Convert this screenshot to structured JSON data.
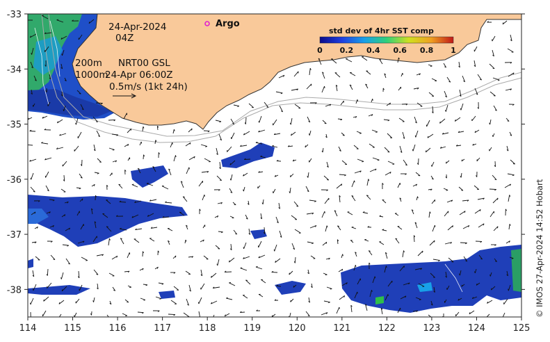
{
  "map": {
    "lon_range": [
      114,
      125
    ],
    "lat_range": [
      -38.5,
      -33
    ],
    "x_ticks": [
      "114",
      "115",
      "116",
      "117",
      "118",
      "119",
      "120",
      "121",
      "122",
      "123",
      "124",
      "125"
    ],
    "y_ticks": [
      "-33",
      "-34",
      "-35",
      "-36",
      "-37",
      "-38"
    ],
    "colors": {
      "land": "#f9c99a",
      "ocean": "#ffffff",
      "coast": "#333333",
      "isobath": "#aaaaaa",
      "sst_blue": "#1f3fb8",
      "sst_green": "#2fbf4a",
      "argo": "#e020d0"
    }
  },
  "annotations": {
    "date": "24-Apr-2024",
    "time": "04Z",
    "isobath_200": "200m",
    "isobath_1000": "1000m",
    "product": "NRT00 GSL",
    "product_time": "24-Apr 06:00Z",
    "scale_vector": "0.5m/s (1kt 24h)"
  },
  "legend": {
    "argo_label": "Argo"
  },
  "colorbar": {
    "title": "std dev of 4hr SST comp",
    "ticks": [
      "0",
      "0.2",
      "0.4",
      "0.6",
      "0.8",
      "1"
    ],
    "range": [
      0,
      1
    ],
    "colors": [
      "#0b0b8a",
      "#1f3fe0",
      "#18a0e8",
      "#2fd07a",
      "#cfe020",
      "#f0a020",
      "#c01818"
    ]
  },
  "credit": "© IMOS 27-Apr-2024 14:52 Hobart"
}
